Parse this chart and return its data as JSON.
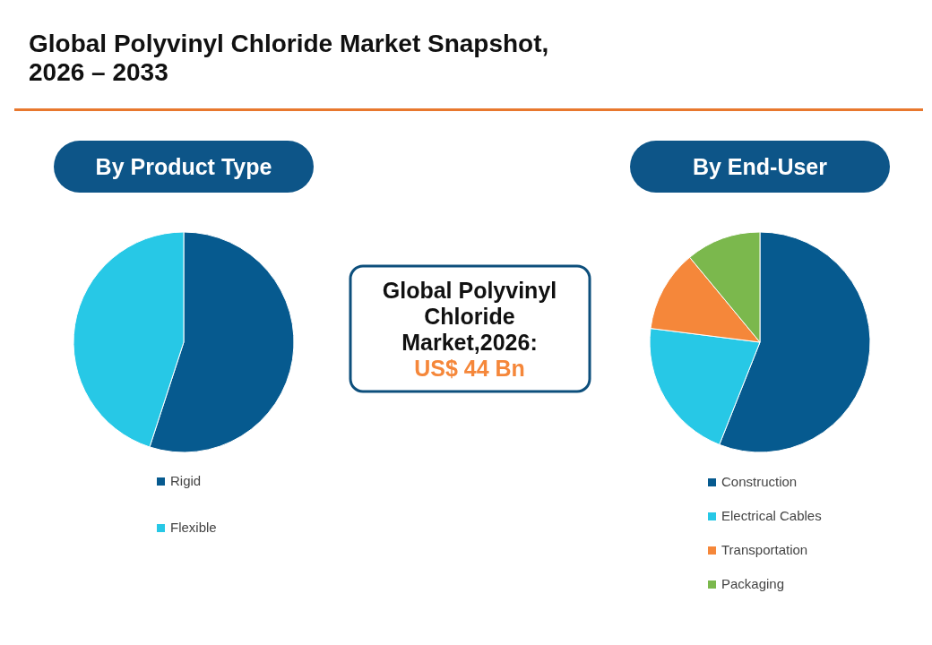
{
  "chart_data": [
    {
      "type": "other",
      "title": "Global Polyvinyl Chloride Market Snapshot, 2026 – 2033",
      "annotations": [
        "Global Polyvinyl Chloride Market,2026:",
        "US$ 44 Bn"
      ]
    },
    {
      "type": "pie",
      "title": "By Product Type",
      "categories": [
        "Rigid",
        "Flexible"
      ],
      "values": [
        55,
        45
      ],
      "colors": [
        "#065a8f",
        "#27c8e6"
      ],
      "legend": "bottom"
    },
    {
      "type": "pie",
      "title": "By End-User",
      "categories": [
        "Construction",
        "Electrical Cables",
        "Transportation",
        "Packaging"
      ],
      "values": [
        56,
        21,
        12,
        11
      ],
      "colors": [
        "#065a8f",
        "#27c8e6",
        "#f5873a",
        "#7bb84d"
      ],
      "legend": "bottom"
    }
  ]
}
